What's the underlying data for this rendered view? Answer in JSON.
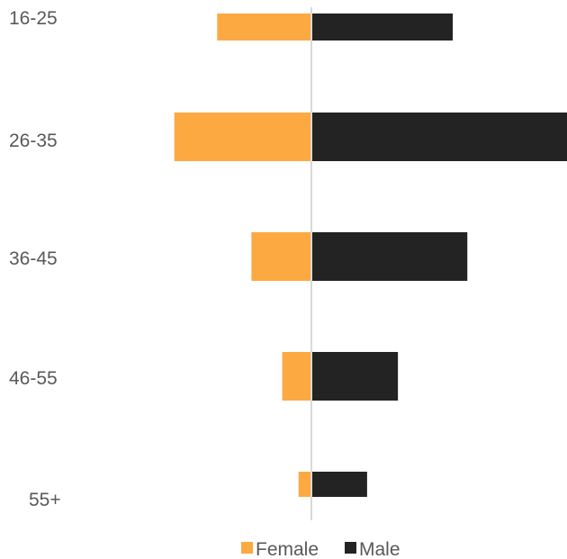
{
  "chart_data": {
    "type": "bar",
    "orientation": "horizontal",
    "layout": "diverging",
    "categories": [
      "16-25",
      "26-35",
      "36-45",
      "46-55",
      "55+"
    ],
    "series": [
      {
        "name": "Female",
        "color": "#FCA942",
        "values": [
          11,
          16,
          7,
          3.4,
          1.5
        ],
        "direction": "left"
      },
      {
        "name": "Male",
        "color": "#232323",
        "values": [
          16.5,
          30,
          18.2,
          10.1,
          6.5
        ],
        "direction": "right"
      }
    ],
    "xlim": [
      -16,
      30
    ],
    "axis_color": "#D9D9D9",
    "grid": false,
    "legend_position": "bottom"
  }
}
